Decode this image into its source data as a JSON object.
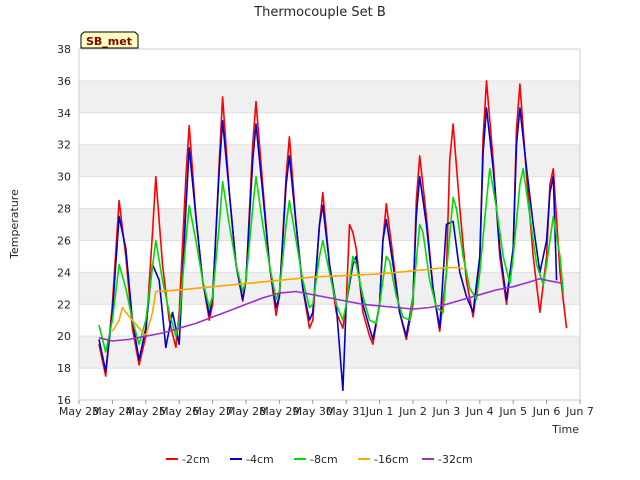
{
  "chart_data": {
    "type": "line",
    "title": "Thermocouple Set B",
    "xlabel": "Time",
    "ylabel": "Temperature",
    "badge": "SB_met",
    "ylim": [
      16,
      38
    ],
    "yticks": [
      16,
      18,
      20,
      22,
      24,
      26,
      28,
      30,
      32,
      34,
      36,
      38
    ],
    "xlim": [
      0,
      15
    ],
    "xticks": [
      {
        "x": 0,
        "label": "May 23"
      },
      {
        "x": 1,
        "label": "May 24"
      },
      {
        "x": 2,
        "label": "May 25"
      },
      {
        "x": 3,
        "label": "May 26"
      },
      {
        "x": 4,
        "label": "May 27"
      },
      {
        "x": 5,
        "label": "May 28"
      },
      {
        "x": 6,
        "label": "May 29"
      },
      {
        "x": 7,
        "label": "May 30"
      },
      {
        "x": 8,
        "label": "May 31"
      },
      {
        "x": 9,
        "label": "Jun 1"
      },
      {
        "x": 10,
        "label": "Jun 2"
      },
      {
        "x": 11,
        "label": "Jun 3"
      },
      {
        "x": 12,
        "label": "Jun 4"
      },
      {
        "x": 13,
        "label": "Jun 5"
      },
      {
        "x": 14,
        "label": "Jun 6"
      },
      {
        "x": 15,
        "label": "Jun 7"
      }
    ],
    "grid": "horizontal bands",
    "legend_position": "bottom",
    "series": [
      {
        "name": "-2cm",
        "color": "#ff0000",
        "points": [
          [
            0.6,
            19.5
          ],
          [
            0.8,
            17.5
          ],
          [
            1.0,
            22.0
          ],
          [
            1.2,
            28.5
          ],
          [
            1.4,
            25.0
          ],
          [
            1.6,
            20.5
          ],
          [
            1.8,
            18.2
          ],
          [
            2.0,
            20.0
          ],
          [
            2.2,
            26.5
          ],
          [
            2.3,
            30.0
          ],
          [
            2.5,
            24.5
          ],
          [
            2.7,
            21.0
          ],
          [
            2.9,
            19.3
          ],
          [
            3.0,
            21.5
          ],
          [
            3.2,
            30.0
          ],
          [
            3.3,
            33.2
          ],
          [
            3.5,
            27.5
          ],
          [
            3.7,
            23.5
          ],
          [
            3.9,
            21.0
          ],
          [
            4.0,
            22.0
          ],
          [
            4.2,
            31.0
          ],
          [
            4.3,
            35.0
          ],
          [
            4.5,
            29.0
          ],
          [
            4.7,
            24.5
          ],
          [
            4.9,
            22.2
          ],
          [
            5.0,
            23.5
          ],
          [
            5.2,
            32.0
          ],
          [
            5.3,
            34.7
          ],
          [
            5.5,
            29.5
          ],
          [
            5.7,
            24.5
          ],
          [
            5.9,
            21.3
          ],
          [
            6.0,
            22.5
          ],
          [
            6.2,
            30.0
          ],
          [
            6.3,
            32.5
          ],
          [
            6.5,
            27.0
          ],
          [
            6.7,
            23.0
          ],
          [
            6.9,
            20.5
          ],
          [
            7.0,
            21.0
          ],
          [
            7.2,
            27.0
          ],
          [
            7.3,
            29.0
          ],
          [
            7.5,
            24.5
          ],
          [
            7.7,
            21.5
          ],
          [
            7.9,
            20.5
          ],
          [
            8.0,
            22.0
          ],
          [
            8.1,
            27.0
          ],
          [
            8.2,
            26.5
          ],
          [
            8.3,
            25.5
          ],
          [
            8.5,
            21.5
          ],
          [
            8.7,
            20.0
          ],
          [
            8.8,
            19.5
          ],
          [
            9.0,
            22.0
          ],
          [
            9.1,
            26.0
          ],
          [
            9.2,
            28.3
          ],
          [
            9.4,
            25.0
          ],
          [
            9.6,
            21.5
          ],
          [
            9.8,
            19.8
          ],
          [
            10.0,
            22.0
          ],
          [
            10.1,
            28.5
          ],
          [
            10.2,
            31.3
          ],
          [
            10.4,
            27.5
          ],
          [
            10.6,
            23.0
          ],
          [
            10.8,
            20.3
          ],
          [
            11.0,
            24.0
          ],
          [
            11.1,
            31.0
          ],
          [
            11.2,
            33.3
          ],
          [
            11.4,
            28.0
          ],
          [
            11.6,
            23.5
          ],
          [
            11.8,
            21.2
          ],
          [
            12.0,
            24.5
          ],
          [
            12.1,
            32.5
          ],
          [
            12.2,
            36.0
          ],
          [
            12.4,
            31.0
          ],
          [
            12.6,
            25.0
          ],
          [
            12.8,
            22.0
          ],
          [
            13.0,
            25.5
          ],
          [
            13.1,
            33.0
          ],
          [
            13.2,
            35.8
          ],
          [
            13.4,
            30.0
          ],
          [
            13.6,
            25.0
          ],
          [
            13.8,
            21.5
          ],
          [
            14.0,
            25.0
          ],
          [
            14.1,
            29.5
          ],
          [
            14.2,
            30.5
          ],
          [
            14.4,
            24.0
          ],
          [
            14.6,
            20.5
          ]
        ]
      },
      {
        "name": "-4cm",
        "color": "#0000cc",
        "points": [
          [
            0.6,
            19.8
          ],
          [
            0.8,
            17.8
          ],
          [
            1.0,
            21.5
          ],
          [
            1.2,
            27.5
          ],
          [
            1.4,
            25.5
          ],
          [
            1.6,
            21.0
          ],
          [
            1.8,
            18.5
          ],
          [
            2.0,
            20.5
          ],
          [
            2.2,
            24.5
          ],
          [
            2.4,
            23.5
          ],
          [
            2.6,
            19.3
          ],
          [
            2.8,
            21.5
          ],
          [
            3.0,
            19.5
          ],
          [
            3.2,
            28.0
          ],
          [
            3.3,
            31.8
          ],
          [
            3.5,
            27.5
          ],
          [
            3.7,
            23.5
          ],
          [
            3.9,
            21.3
          ],
          [
            4.0,
            22.5
          ],
          [
            4.2,
            30.5
          ],
          [
            4.3,
            33.5
          ],
          [
            4.5,
            29.0
          ],
          [
            4.7,
            24.5
          ],
          [
            4.9,
            22.3
          ],
          [
            5.0,
            23.5
          ],
          [
            5.2,
            31.0
          ],
          [
            5.3,
            33.3
          ],
          [
            5.5,
            29.0
          ],
          [
            5.7,
            24.5
          ],
          [
            5.9,
            21.8
          ],
          [
            6.0,
            22.5
          ],
          [
            6.2,
            29.5
          ],
          [
            6.3,
            31.3
          ],
          [
            6.5,
            27.0
          ],
          [
            6.7,
            23.0
          ],
          [
            6.9,
            21.0
          ],
          [
            7.0,
            21.5
          ],
          [
            7.2,
            27.0
          ],
          [
            7.3,
            28.2
          ],
          [
            7.5,
            24.5
          ],
          [
            7.7,
            22.0
          ],
          [
            7.9,
            16.6
          ],
          [
            8.0,
            22.0
          ],
          [
            8.2,
            24.5
          ],
          [
            8.3,
            25.0
          ],
          [
            8.5,
            22.0
          ],
          [
            8.7,
            20.5
          ],
          [
            8.8,
            19.8
          ],
          [
            9.0,
            22.0
          ],
          [
            9.1,
            26.0
          ],
          [
            9.2,
            27.3
          ],
          [
            9.4,
            24.5
          ],
          [
            9.6,
            21.5
          ],
          [
            9.8,
            20.0
          ],
          [
            10.0,
            22.5
          ],
          [
            10.1,
            27.5
          ],
          [
            10.2,
            30.0
          ],
          [
            10.4,
            27.0
          ],
          [
            10.6,
            23.0
          ],
          [
            10.8,
            20.5
          ],
          [
            11.0,
            27.0
          ],
          [
            11.2,
            27.2
          ],
          [
            11.4,
            24.0
          ],
          [
            11.6,
            22.5
          ],
          [
            11.8,
            21.5
          ],
          [
            12.0,
            25.0
          ],
          [
            12.1,
            31.5
          ],
          [
            12.2,
            34.3
          ],
          [
            12.4,
            30.5
          ],
          [
            12.6,
            25.5
          ],
          [
            12.8,
            22.3
          ],
          [
            13.0,
            25.5
          ],
          [
            13.1,
            32.0
          ],
          [
            13.2,
            34.3
          ],
          [
            13.4,
            30.5
          ],
          [
            13.6,
            27.0
          ],
          [
            13.8,
            24.0
          ],
          [
            14.0,
            26.0
          ],
          [
            14.1,
            29.0
          ],
          [
            14.2,
            30.0
          ],
          [
            14.3,
            23.5
          ]
        ]
      },
      {
        "name": "-8cm",
        "color": "#00dd00",
        "points": [
          [
            0.6,
            20.7
          ],
          [
            0.8,
            19.0
          ],
          [
            1.0,
            21.0
          ],
          [
            1.2,
            24.5
          ],
          [
            1.4,
            23.0
          ],
          [
            1.6,
            21.0
          ],
          [
            1.8,
            19.5
          ],
          [
            2.0,
            21.0
          ],
          [
            2.3,
            26.0
          ],
          [
            2.5,
            23.5
          ],
          [
            2.7,
            21.5
          ],
          [
            2.9,
            20.0
          ],
          [
            3.0,
            21.0
          ],
          [
            3.2,
            26.0
          ],
          [
            3.3,
            28.2
          ],
          [
            3.5,
            26.0
          ],
          [
            3.7,
            23.5
          ],
          [
            3.9,
            21.8
          ],
          [
            4.0,
            22.5
          ],
          [
            4.2,
            27.0
          ],
          [
            4.3,
            29.7
          ],
          [
            4.5,
            27.0
          ],
          [
            4.7,
            24.5
          ],
          [
            4.9,
            22.8
          ],
          [
            5.0,
            23.5
          ],
          [
            5.2,
            28.0
          ],
          [
            5.3,
            30.0
          ],
          [
            5.5,
            27.0
          ],
          [
            5.7,
            24.5
          ],
          [
            5.9,
            22.3
          ],
          [
            6.0,
            22.8
          ],
          [
            6.2,
            27.0
          ],
          [
            6.3,
            28.5
          ],
          [
            6.5,
            26.0
          ],
          [
            6.7,
            23.5
          ],
          [
            6.9,
            21.8
          ],
          [
            7.0,
            22.0
          ],
          [
            7.2,
            25.0
          ],
          [
            7.3,
            26.0
          ],
          [
            7.5,
            24.0
          ],
          [
            7.7,
            22.0
          ],
          [
            7.9,
            21.0
          ],
          [
            8.0,
            22.0
          ],
          [
            8.2,
            25.0
          ],
          [
            8.3,
            24.5
          ],
          [
            8.5,
            22.5
          ],
          [
            8.7,
            21.0
          ],
          [
            8.9,
            20.8
          ],
          [
            9.0,
            22.0
          ],
          [
            9.2,
            25.0
          ],
          [
            9.3,
            24.7
          ],
          [
            9.5,
            22.5
          ],
          [
            9.7,
            21.2
          ],
          [
            9.9,
            21.0
          ],
          [
            10.0,
            22.5
          ],
          [
            10.2,
            27.0
          ],
          [
            10.3,
            26.5
          ],
          [
            10.5,
            23.5
          ],
          [
            10.7,
            21.8
          ],
          [
            10.9,
            21.5
          ],
          [
            11.0,
            24.0
          ],
          [
            11.2,
            28.7
          ],
          [
            11.3,
            28.0
          ],
          [
            11.5,
            25.0
          ],
          [
            11.7,
            23.0
          ],
          [
            11.9,
            22.3
          ],
          [
            12.0,
            24.0
          ],
          [
            12.2,
            28.5
          ],
          [
            12.3,
            30.5
          ],
          [
            12.5,
            28.0
          ],
          [
            12.7,
            25.0
          ],
          [
            12.9,
            23.3
          ],
          [
            13.0,
            25.0
          ],
          [
            13.2,
            29.5
          ],
          [
            13.3,
            30.5
          ],
          [
            13.5,
            27.5
          ],
          [
            13.7,
            24.5
          ],
          [
            13.9,
            23.2
          ],
          [
            14.0,
            24.5
          ],
          [
            14.2,
            27.5
          ],
          [
            14.4,
            25.0
          ],
          [
            14.5,
            22.7
          ]
        ]
      },
      {
        "name": "-16cm",
        "color": "#ffa500",
        "points": [
          [
            1.0,
            20.3
          ],
          [
            1.2,
            21.0
          ],
          [
            1.3,
            21.8
          ],
          [
            1.4,
            21.5
          ],
          [
            1.6,
            21.0
          ],
          [
            1.8,
            20.5
          ],
          [
            2.0,
            20.0
          ],
          [
            2.2,
            21.5
          ],
          [
            2.3,
            22.8
          ],
          [
            3.0,
            22.9
          ],
          [
            4.0,
            23.1
          ],
          [
            5.0,
            23.3
          ],
          [
            6.0,
            23.5
          ],
          [
            7.0,
            23.7
          ],
          [
            8.0,
            23.8
          ],
          [
            9.0,
            23.9
          ],
          [
            10.0,
            24.1
          ],
          [
            11.0,
            24.3
          ],
          [
            11.4,
            24.3
          ],
          [
            11.5,
            24.2
          ]
        ]
      },
      {
        "name": "-32cm",
        "color": "#9932cc",
        "points": [
          [
            0.6,
            19.9
          ],
          [
            1.0,
            19.7
          ],
          [
            1.5,
            19.8
          ],
          [
            2.0,
            20.0
          ],
          [
            2.5,
            20.2
          ],
          [
            3.0,
            20.5
          ],
          [
            3.5,
            20.8
          ],
          [
            4.0,
            21.2
          ],
          [
            4.5,
            21.6
          ],
          [
            5.0,
            22.0
          ],
          [
            5.5,
            22.4
          ],
          [
            6.0,
            22.7
          ],
          [
            6.5,
            22.8
          ],
          [
            7.0,
            22.6
          ],
          [
            7.5,
            22.4
          ],
          [
            8.0,
            22.2
          ],
          [
            8.5,
            22.0
          ],
          [
            9.0,
            21.9
          ],
          [
            9.5,
            21.8
          ],
          [
            10.0,
            21.7
          ],
          [
            10.5,
            21.8
          ],
          [
            11.0,
            22.0
          ],
          [
            11.5,
            22.3
          ],
          [
            12.0,
            22.6
          ],
          [
            12.5,
            22.9
          ],
          [
            13.0,
            23.1
          ],
          [
            13.5,
            23.4
          ],
          [
            13.8,
            23.6
          ],
          [
            14.0,
            23.5
          ],
          [
            14.5,
            23.3
          ]
        ]
      }
    ]
  }
}
